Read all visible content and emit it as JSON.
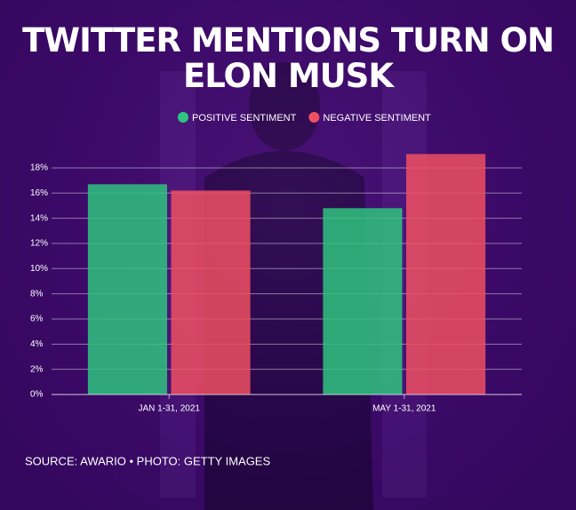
{
  "chart_data": {
    "type": "bar",
    "title": "TWITTER MENTIONS TURN ON ELON MUSK",
    "categories": [
      "JAN 1-31, 2021",
      "MAY 1-31, 2021"
    ],
    "series": [
      {
        "name": "POSITIVE SENTIMENT",
        "color": "#2fc47f",
        "values": [
          16.7,
          14.8
        ]
      },
      {
        "name": "NEGATIVE SENTIMENT",
        "color": "#ee4f62",
        "values": [
          16.2,
          19.1
        ]
      }
    ],
    "ylim": [
      0,
      20
    ],
    "yticks": [
      {
        "value": 0,
        "label": "0%"
      },
      {
        "value": 2,
        "label": "2%"
      },
      {
        "value": 4,
        "label": "4%"
      },
      {
        "value": 6,
        "label": "6%"
      },
      {
        "value": 8,
        "label": "8%"
      },
      {
        "value": 10,
        "label": "10%"
      },
      {
        "value": 12,
        "label": "12%"
      },
      {
        "value": 14,
        "label": "14%"
      },
      {
        "value": 16,
        "label": "16%"
      },
      {
        "value": 18,
        "label": "18%"
      }
    ],
    "grid": true,
    "source": "SOURCE: AWARIO • PHOTO: GETTY IMAGES"
  }
}
